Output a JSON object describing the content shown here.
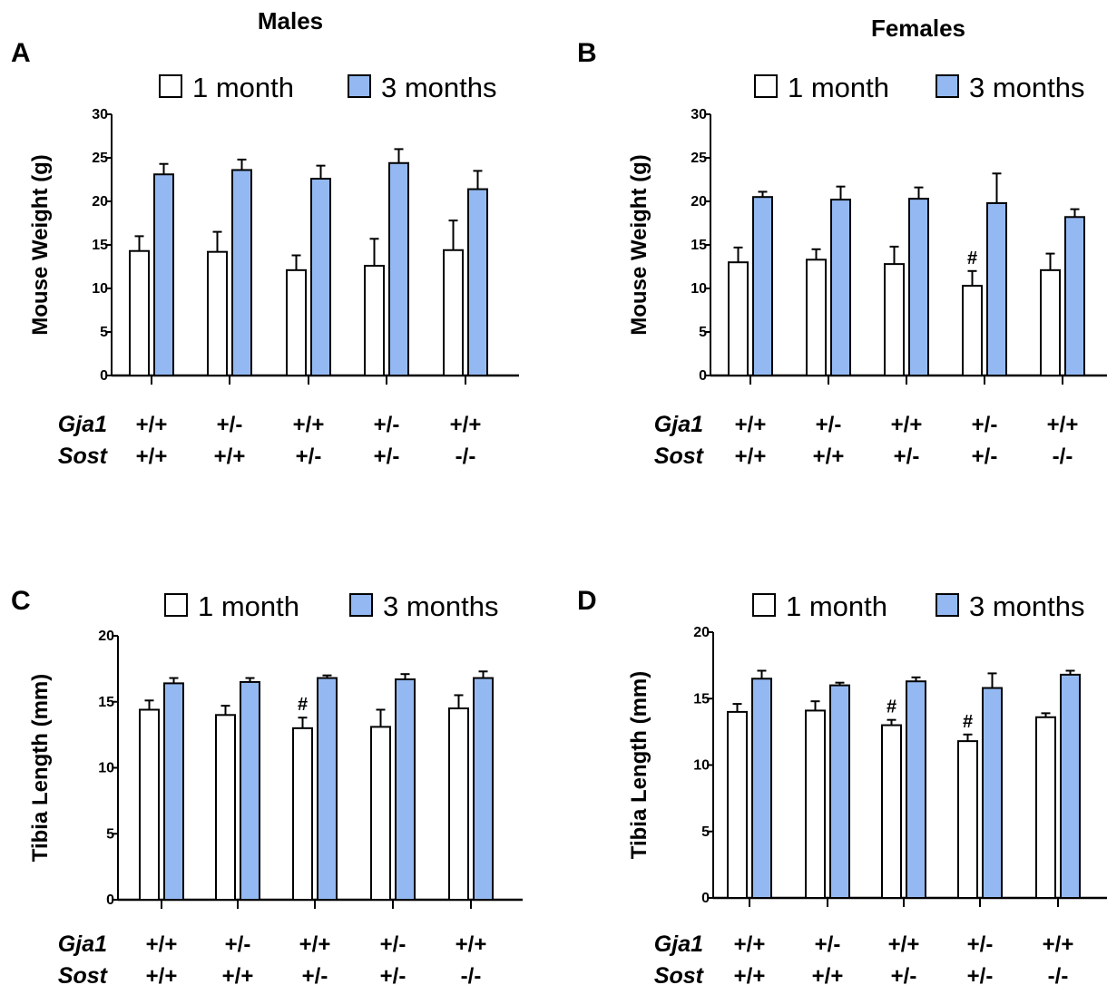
{
  "figure": {
    "col_titles": [
      "Males",
      "Females"
    ],
    "legend": {
      "month1": "1 month",
      "month3": "3 months"
    },
    "colors": {
      "month1": "#ffffff",
      "month3": "#94b9f2",
      "stroke": "#000000"
    },
    "gene_labels": [
      "Gja1",
      "Sost"
    ]
  },
  "chart_data": [
    {
      "panel": "A",
      "type": "bar",
      "ylabel": "Mouse Weight (g)",
      "ylim": [
        0,
        30
      ],
      "yticks": [
        0,
        5,
        10,
        15,
        20,
        25,
        30
      ],
      "categories": [
        {
          "gja1": "+/+",
          "sost": "+/+"
        },
        {
          "gja1": "+/-",
          "sost": "+/+"
        },
        {
          "gja1": "+/+",
          "sost": "+/-"
        },
        {
          "gja1": "+/-",
          "sost": "+/-"
        },
        {
          "gja1": "+/+",
          "sost": "-/-"
        }
      ],
      "series": [
        {
          "name": "1 month",
          "values": [
            14.3,
            14.2,
            12.1,
            12.6,
            14.4
          ],
          "errors": [
            1.7,
            2.3,
            1.7,
            3.1,
            3.4
          ]
        },
        {
          "name": "3 months",
          "values": [
            23.1,
            23.6,
            22.6,
            24.4,
            21.4
          ],
          "errors": [
            1.2,
            1.2,
            1.5,
            1.6,
            2.1
          ]
        }
      ],
      "significance": []
    },
    {
      "panel": "B",
      "type": "bar",
      "ylabel": "Mouse Weight (g)",
      "ylim": [
        0,
        30
      ],
      "yticks": [
        0,
        5,
        10,
        15,
        20,
        25,
        30
      ],
      "categories": [
        {
          "gja1": "+/+",
          "sost": "+/+"
        },
        {
          "gja1": "+/-",
          "sost": "+/+"
        },
        {
          "gja1": "+/+",
          "sost": "+/-"
        },
        {
          "gja1": "+/-",
          "sost": "+/-"
        },
        {
          "gja1": "+/+",
          "sost": "-/-"
        }
      ],
      "series": [
        {
          "name": "1 month",
          "values": [
            13.0,
            13.3,
            12.8,
            10.3,
            12.1
          ],
          "errors": [
            1.7,
            1.2,
            2.0,
            1.7,
            1.9
          ]
        },
        {
          "name": "3 months",
          "values": [
            20.5,
            20.2,
            20.3,
            19.8,
            18.2
          ],
          "errors": [
            0.6,
            1.5,
            1.3,
            3.4,
            0.9
          ]
        }
      ],
      "significance": [
        {
          "group": 3,
          "series": 0,
          "symbol": "#"
        }
      ]
    },
    {
      "panel": "C",
      "type": "bar",
      "ylabel": "Tibia Length (mm)",
      "ylim": [
        0,
        20
      ],
      "yticks": [
        0,
        5,
        10,
        15,
        20
      ],
      "categories": [
        {
          "gja1": "+/+",
          "sost": "+/+"
        },
        {
          "gja1": "+/-",
          "sost": "+/+"
        },
        {
          "gja1": "+/+",
          "sost": "+/-"
        },
        {
          "gja1": "+/-",
          "sost": "+/-"
        },
        {
          "gja1": "+/+",
          "sost": "-/-"
        }
      ],
      "series": [
        {
          "name": "1 month",
          "values": [
            14.4,
            14.0,
            13.0,
            13.1,
            14.5
          ],
          "errors": [
            0.7,
            0.7,
            0.8,
            1.3,
            1.0
          ]
        },
        {
          "name": "3 months",
          "values": [
            16.4,
            16.5,
            16.8,
            16.7,
            16.8
          ],
          "errors": [
            0.4,
            0.3,
            0.2,
            0.4,
            0.5
          ]
        }
      ],
      "significance": [
        {
          "group": 2,
          "series": 0,
          "symbol": "#"
        }
      ]
    },
    {
      "panel": "D",
      "type": "bar",
      "ylabel": "Tibia Length (mm)",
      "ylim": [
        0,
        20
      ],
      "yticks": [
        0,
        5,
        10,
        15,
        20
      ],
      "categories": [
        {
          "gja1": "+/+",
          "sost": "+/+"
        },
        {
          "gja1": "+/-",
          "sost": "+/+"
        },
        {
          "gja1": "+/+",
          "sost": "+/-"
        },
        {
          "gja1": "+/-",
          "sost": "+/-"
        },
        {
          "gja1": "+/+",
          "sost": "-/-"
        }
      ],
      "series": [
        {
          "name": "1 month",
          "values": [
            14.0,
            14.1,
            13.0,
            11.8,
            13.6
          ],
          "errors": [
            0.6,
            0.7,
            0.4,
            0.5,
            0.3
          ]
        },
        {
          "name": "3 months",
          "values": [
            16.5,
            16.0,
            16.3,
            15.8,
            16.8
          ],
          "errors": [
            0.6,
            0.2,
            0.3,
            1.1,
            0.3
          ]
        }
      ],
      "significance": [
        {
          "group": 2,
          "series": 0,
          "symbol": "#"
        },
        {
          "group": 3,
          "series": 0,
          "symbol": "#"
        }
      ]
    }
  ]
}
